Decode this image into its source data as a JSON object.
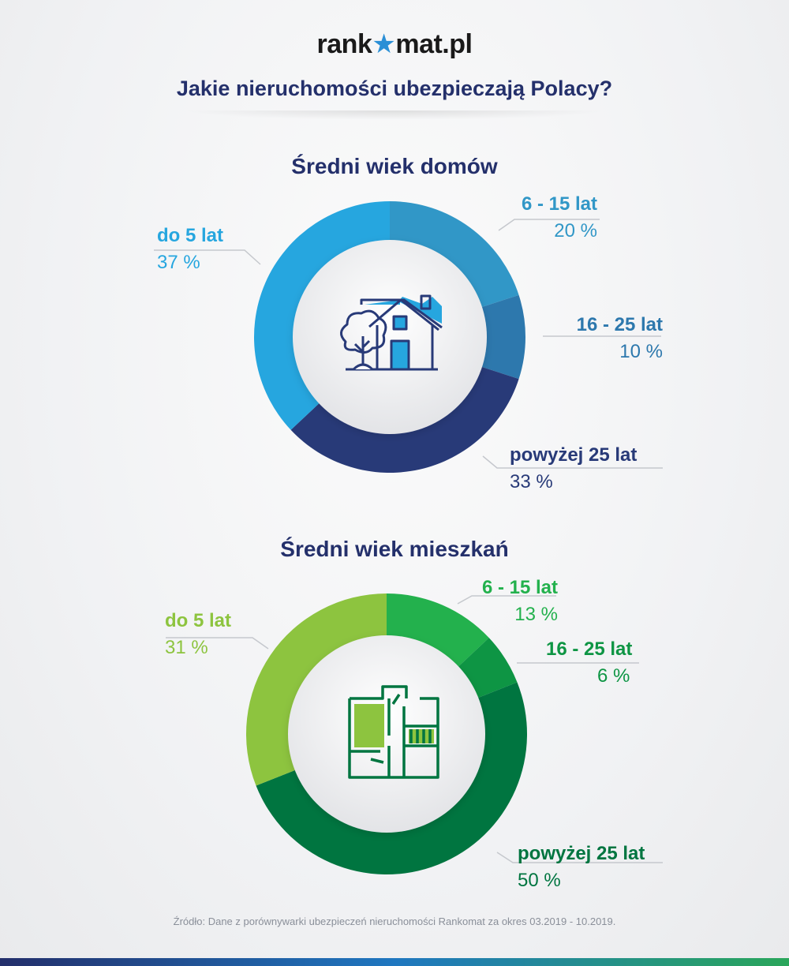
{
  "header": {
    "logo_left": "rank",
    "logo_star": "★",
    "logo_right": "mat.pl",
    "subtitle": "Jakie nieruchomości ubezpieczają Polacy?"
  },
  "chart_data": [
    {
      "type": "pie",
      "title": "Średni wiek domów",
      "categories": [
        "6 - 15 lat",
        "16 - 25 lat",
        "powyżej 25 lat",
        "do 5 lat"
      ],
      "values": [
        20,
        10,
        33,
        37
      ],
      "value_labels": [
        "20 %",
        "10 %",
        "33 %",
        "37 %"
      ],
      "colors": [
        "#3197c7",
        "#2d78ad",
        "#283a78",
        "#26a6df"
      ],
      "center_icon": "house-icon"
    },
    {
      "type": "pie",
      "title": "Średni wiek mieszkań",
      "categories": [
        "6 - 15 lat",
        "16 - 25 lat",
        "powyżej 25 lat",
        "do 5 lat"
      ],
      "values": [
        13,
        6,
        50,
        31
      ],
      "value_labels": [
        "13 %",
        "6 %",
        "50 %",
        "31 %"
      ],
      "colors": [
        "#23b14d",
        "#0e9544",
        "#007540",
        "#8dc43f"
      ],
      "center_icon": "floor-plan-icon"
    }
  ],
  "footer": {
    "source": "Źródło: Dane z porównywarki ubezpieczeń nieruchomości Rankomat za okres 03.2019 - 10.2019."
  }
}
